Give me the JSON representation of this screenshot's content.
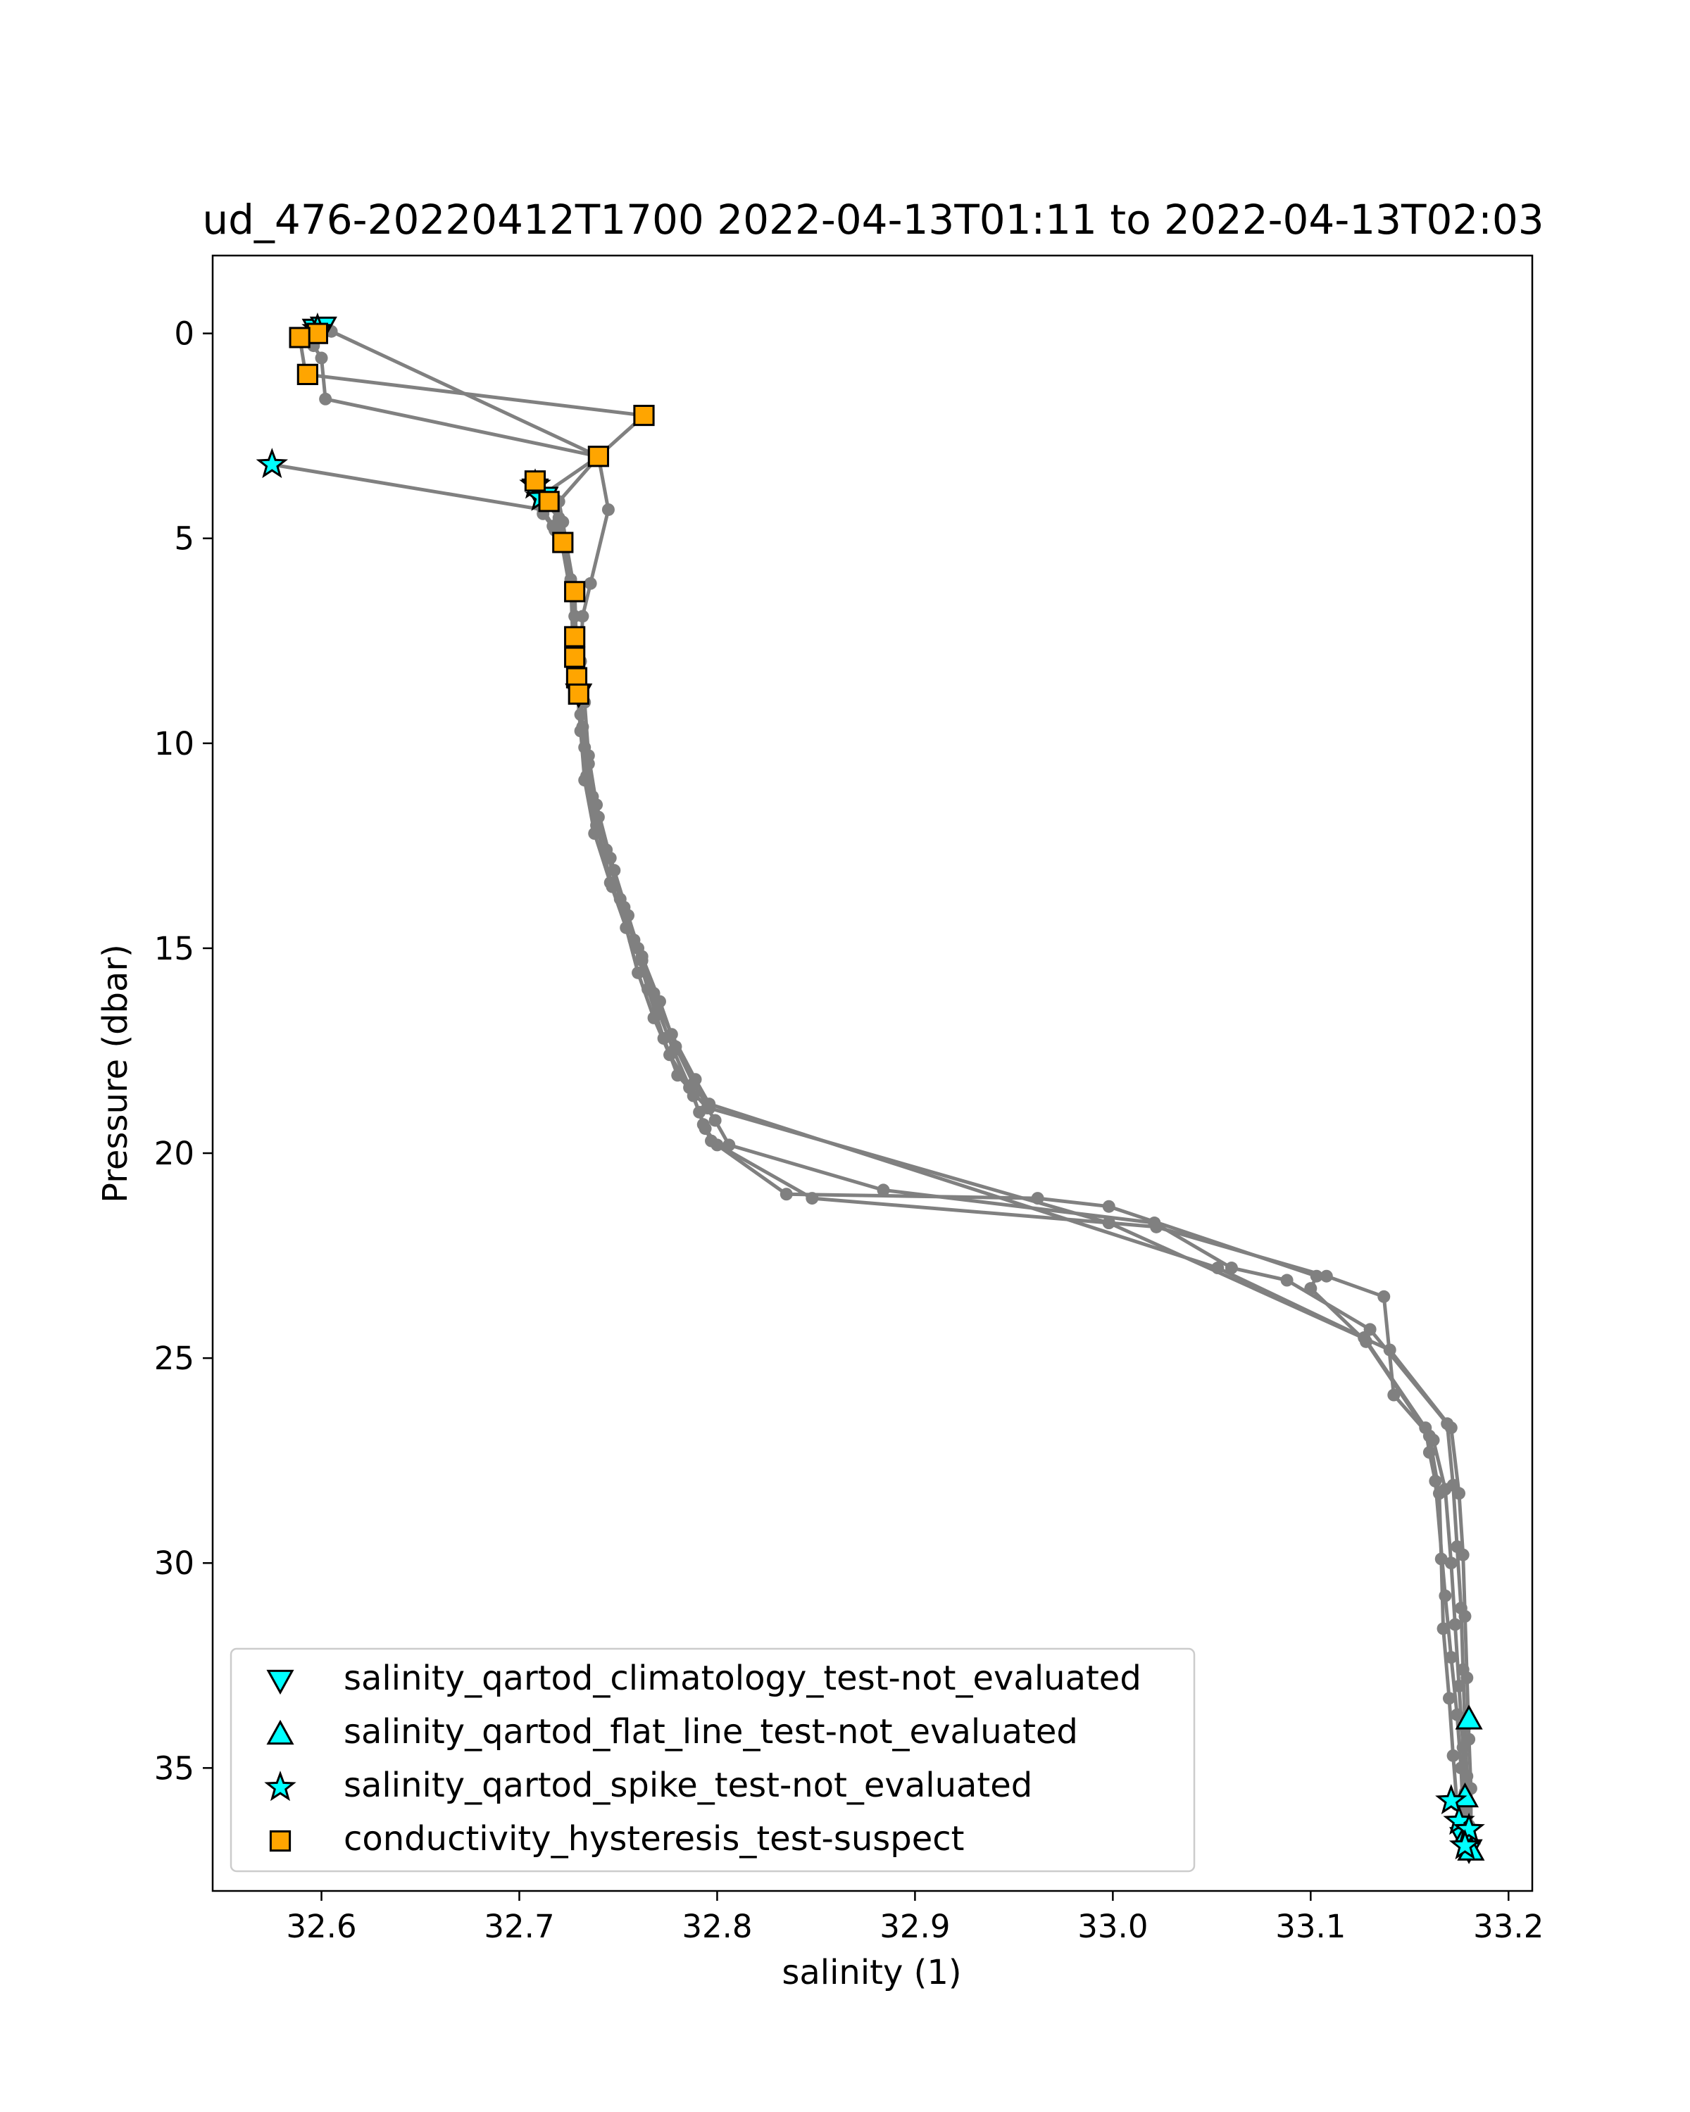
{
  "chart_data": {
    "type": "scatter",
    "title": "ud_476-20220412T1700 2022-04-13T01:11 to 2022-04-13T02:03",
    "xlabel": "salinity (1)",
    "ylabel": "Pressure (dbar)",
    "xlim": [
      32.545,
      33.212
    ],
    "ylim": [
      38.0,
      -1.9
    ],
    "y_inverted": true,
    "grid": false,
    "legend_position": "lower-left",
    "xticks": [
      32.6,
      32.7,
      32.8,
      32.9,
      33.0,
      33.1,
      33.2
    ],
    "xtick_labels": [
      "32.6",
      "32.7",
      "32.8",
      "32.9",
      "33.0",
      "33.1",
      "33.2"
    ],
    "yticks": [
      0,
      5,
      10,
      15,
      20,
      25,
      30,
      35
    ],
    "ytick_labels": [
      "0",
      "5",
      "10",
      "15",
      "20",
      "25",
      "30",
      "35"
    ],
    "profile": {
      "color": "#808080",
      "casts": [
        [
          [
            32.597,
            -0.1
          ],
          [
            32.595,
            0.1
          ],
          [
            32.596,
            0.3
          ],
          [
            32.6,
            0.6
          ],
          [
            32.602,
            1.6
          ],
          [
            32.74,
            3.0
          ],
          [
            32.71,
            4.0
          ],
          [
            32.712,
            4.4
          ],
          [
            32.718,
            4.8
          ],
          [
            32.722,
            5.1
          ],
          [
            32.726,
            6.0
          ],
          [
            32.727,
            7.4
          ],
          [
            32.729,
            8.6
          ],
          [
            32.731,
            9.7
          ],
          [
            32.733,
            10.9
          ],
          [
            32.738,
            12.2
          ],
          [
            32.746,
            13.4
          ],
          [
            32.754,
            14.5
          ],
          [
            32.76,
            15.6
          ],
          [
            32.768,
            16.7
          ],
          [
            32.776,
            17.6
          ],
          [
            32.786,
            18.4
          ],
          [
            32.791,
            19.0
          ],
          [
            32.794,
            19.4
          ],
          [
            32.8,
            19.8
          ],
          [
            32.835,
            21.0
          ],
          [
            32.962,
            21.1
          ],
          [
            32.998,
            21.3
          ],
          [
            33.103,
            23.0
          ],
          [
            33.1,
            23.3
          ],
          [
            33.128,
            24.6
          ],
          [
            33.16,
            26.9
          ],
          [
            33.165,
            28.3
          ],
          [
            33.166,
            29.9
          ],
          [
            33.167,
            31.6
          ],
          [
            33.17,
            33.3
          ],
          [
            33.172,
            34.7
          ],
          [
            33.174,
            35.9
          ],
          [
            33.176,
            36.6
          ]
        ],
        [
          [
            32.589,
            0.1
          ],
          [
            32.592,
            1.0
          ],
          [
            32.763,
            2.0
          ],
          [
            32.74,
            3.0
          ],
          [
            32.72,
            4.1
          ],
          [
            32.722,
            4.6
          ],
          [
            32.724,
            5.2
          ],
          [
            32.728,
            6.3
          ],
          [
            32.729,
            7.9
          ],
          [
            32.731,
            9.3
          ],
          [
            32.735,
            10.5
          ],
          [
            32.74,
            11.8
          ],
          [
            32.748,
            13.1
          ],
          [
            32.755,
            14.2
          ],
          [
            32.762,
            15.3
          ],
          [
            32.77,
            16.5
          ],
          [
            32.778,
            17.5
          ],
          [
            32.788,
            18.6
          ],
          [
            32.793,
            19.3
          ],
          [
            32.797,
            19.7
          ],
          [
            32.848,
            21.1
          ],
          [
            32.998,
            21.7
          ],
          [
            33.022,
            21.8
          ],
          [
            33.108,
            23.0
          ],
          [
            33.137,
            23.5
          ],
          [
            33.142,
            25.9
          ],
          [
            33.162,
            27.0
          ],
          [
            33.168,
            28.2
          ],
          [
            33.171,
            30.0
          ],
          [
            33.173,
            31.5
          ],
          [
            33.175,
            33.0
          ],
          [
            33.177,
            34.5
          ],
          [
            33.178,
            35.6
          ],
          [
            33.179,
            36.8
          ]
        ],
        [
          [
            32.575,
            3.2
          ],
          [
            32.712,
            4.3
          ],
          [
            32.717,
            4.7
          ],
          [
            32.721,
            5.0
          ],
          [
            32.728,
            6.9
          ],
          [
            32.73,
            8.2
          ],
          [
            32.732,
            9.6
          ],
          [
            32.734,
            10.8
          ],
          [
            32.739,
            12.0
          ],
          [
            32.747,
            13.5
          ],
          [
            32.758,
            14.8
          ],
          [
            32.765,
            16.0
          ],
          [
            32.773,
            17.2
          ],
          [
            32.78,
            18.1
          ],
          [
            32.795,
            18.9
          ],
          [
            32.799,
            19.2
          ],
          [
            32.806,
            19.8
          ],
          [
            32.884,
            20.9
          ],
          [
            33.021,
            21.7
          ],
          [
            33.06,
            22.8
          ],
          [
            33.088,
            23.1
          ],
          [
            33.13,
            24.3
          ],
          [
            33.169,
            26.6
          ],
          [
            33.172,
            28.1
          ],
          [
            33.174,
            29.6
          ],
          [
            33.176,
            31.1
          ],
          [
            33.177,
            32.6
          ],
          [
            33.178,
            34.0
          ],
          [
            33.179,
            35.2
          ],
          [
            33.18,
            36.4
          ]
        ],
        [
          [
            32.598,
            -0.2
          ],
          [
            32.605,
            -0.05
          ],
          [
            32.74,
            3.0
          ],
          [
            32.745,
            4.3
          ],
          [
            32.736,
            6.1
          ],
          [
            32.732,
            6.9
          ],
          [
            32.731,
            8.0
          ],
          [
            32.733,
            9.0
          ],
          [
            32.735,
            10.3
          ],
          [
            32.739,
            11.5
          ],
          [
            32.746,
            12.8
          ],
          [
            32.753,
            14.0
          ],
          [
            32.762,
            15.2
          ],
          [
            32.771,
            16.3
          ],
          [
            32.779,
            17.4
          ],
          [
            32.788,
            18.3
          ],
          [
            32.796,
            18.9
          ],
          [
            32.998,
            21.7
          ],
          [
            33.14,
            24.8
          ],
          [
            33.171,
            26.7
          ],
          [
            33.175,
            28.3
          ],
          [
            33.177,
            29.8
          ],
          [
            33.178,
            31.3
          ],
          [
            33.179,
            32.8
          ],
          [
            33.18,
            34.3
          ],
          [
            33.181,
            35.5
          ],
          [
            33.181,
            36.9
          ]
        ],
        [
          [
            32.708,
            3.7
          ],
          [
            32.713,
            4.1
          ],
          [
            32.72,
            4.5
          ],
          [
            32.727,
            6.4
          ],
          [
            32.729,
            7.6
          ],
          [
            32.73,
            8.8
          ],
          [
            32.733,
            10.1
          ],
          [
            32.737,
            11.3
          ],
          [
            32.744,
            12.6
          ],
          [
            32.751,
            13.8
          ],
          [
            32.76,
            15.0
          ],
          [
            32.768,
            16.1
          ],
          [
            32.777,
            17.1
          ],
          [
            32.789,
            18.2
          ],
          [
            32.796,
            18.8
          ],
          [
            33.053,
            22.8
          ],
          [
            33.127,
            24.5
          ],
          [
            33.158,
            26.7
          ],
          [
            33.16,
            27.3
          ],
          [
            33.163,
            28.0
          ],
          [
            33.168,
            30.8
          ],
          [
            33.171,
            32.3
          ],
          [
            33.174,
            33.7
          ],
          [
            33.176,
            35.0
          ],
          [
            33.177,
            36.1
          ],
          [
            33.178,
            36.7
          ]
        ]
      ]
    },
    "series": [
      {
        "name": "salinity_qartod_climatology_test-not_evaluated",
        "marker": "triangle-down",
        "color": "#00ffff",
        "points": [
          [
            32.597,
            -0.1
          ],
          [
            32.601,
            -0.15
          ],
          [
            32.708,
            3.8
          ],
          [
            32.713,
            4.0
          ],
          [
            32.73,
            8.8
          ],
          [
            33.177,
            36.7
          ],
          [
            33.18,
            37.0
          ]
        ]
      },
      {
        "name": "salinity_qartod_flat_line_test-not_evaluated",
        "marker": "triangle-up",
        "color": "#00ffff",
        "points": [
          [
            33.18,
            33.8
          ],
          [
            33.178,
            35.7
          ],
          [
            33.179,
            36.6
          ],
          [
            33.181,
            37.0
          ]
        ]
      },
      {
        "name": "salinity_qartod_spike_test-not_evaluated",
        "marker": "star",
        "color": "#00ffff",
        "points": [
          [
            32.575,
            3.2
          ],
          [
            32.708,
            3.7
          ],
          [
            32.711,
            4.0
          ],
          [
            32.598,
            -0.1
          ],
          [
            33.171,
            35.8
          ],
          [
            33.175,
            36.3
          ],
          [
            33.18,
            36.5
          ],
          [
            33.178,
            36.9
          ]
        ]
      },
      {
        "name": "conductivity_hysteresis_test-suspect",
        "marker": "square",
        "color": "#ffa500",
        "points": [
          [
            32.598,
            0.0
          ],
          [
            32.589,
            0.1
          ],
          [
            32.593,
            1.0
          ],
          [
            32.763,
            2.0
          ],
          [
            32.74,
            3.0
          ],
          [
            32.708,
            3.6
          ],
          [
            32.715,
            4.1
          ],
          [
            32.722,
            5.1
          ],
          [
            32.728,
            6.3
          ],
          [
            32.728,
            7.4
          ],
          [
            32.728,
            7.9
          ],
          [
            32.729,
            8.4
          ],
          [
            32.73,
            8.8
          ]
        ]
      }
    ]
  }
}
